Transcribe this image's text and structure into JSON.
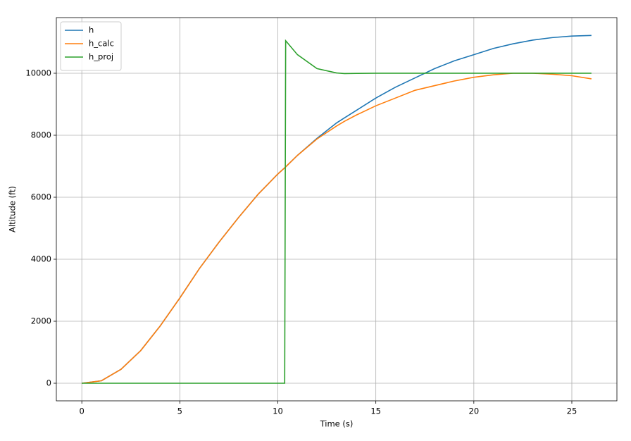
{
  "chart_data": {
    "type": "line",
    "xlabel": "Time (s)",
    "ylabel": "Altitude (ft)",
    "x": [
      0,
      1,
      2,
      3,
      4,
      5,
      6,
      7,
      8,
      9,
      10,
      10.35,
      10.4,
      11,
      12,
      13,
      13.4,
      14,
      15,
      16,
      17,
      18,
      19,
      20,
      21,
      22,
      23,
      24,
      25,
      26
    ],
    "series": [
      {
        "name": "h",
        "color": "#1f77b4",
        "values": [
          0,
          80,
          450,
          1050,
          1850,
          2750,
          3700,
          4550,
          5350,
          6100,
          6750,
          6950,
          6980,
          7350,
          7900,
          8400,
          8560,
          8800,
          9200,
          9550,
          9850,
          10150,
          10400,
          10600,
          10800,
          10950,
          11070,
          11150,
          11200,
          11220
        ]
      },
      {
        "name": "h_calc",
        "color": "#ff7f0e",
        "values": [
          0,
          80,
          450,
          1050,
          1850,
          2750,
          3700,
          4550,
          5350,
          6100,
          6750,
          6950,
          6980,
          7350,
          7880,
          8300,
          8450,
          8650,
          8950,
          9200,
          9450,
          9600,
          9750,
          9870,
          9950,
          10000,
          10000,
          9970,
          9920,
          9820
        ]
      },
      {
        "name": "h_proj",
        "color": "#2ca02c",
        "values": [
          0,
          0,
          0,
          0,
          0,
          0,
          0,
          0,
          0,
          0,
          0,
          0,
          11050,
          10600,
          10150,
          10010,
          9990,
          9995,
          10000,
          10000,
          10000,
          10000,
          10000,
          10000,
          10000,
          10000,
          10000,
          10000,
          10000,
          10000
        ]
      }
    ],
    "xlim": [
      -1.3,
      27.3
    ],
    "xticks": [
      0,
      5,
      10,
      15,
      20,
      25
    ],
    "ylim": [
      -568,
      11795
    ],
    "yticks": [
      0,
      2000,
      4000,
      6000,
      8000,
      10000
    ],
    "grid": true,
    "legend": "upper left"
  }
}
